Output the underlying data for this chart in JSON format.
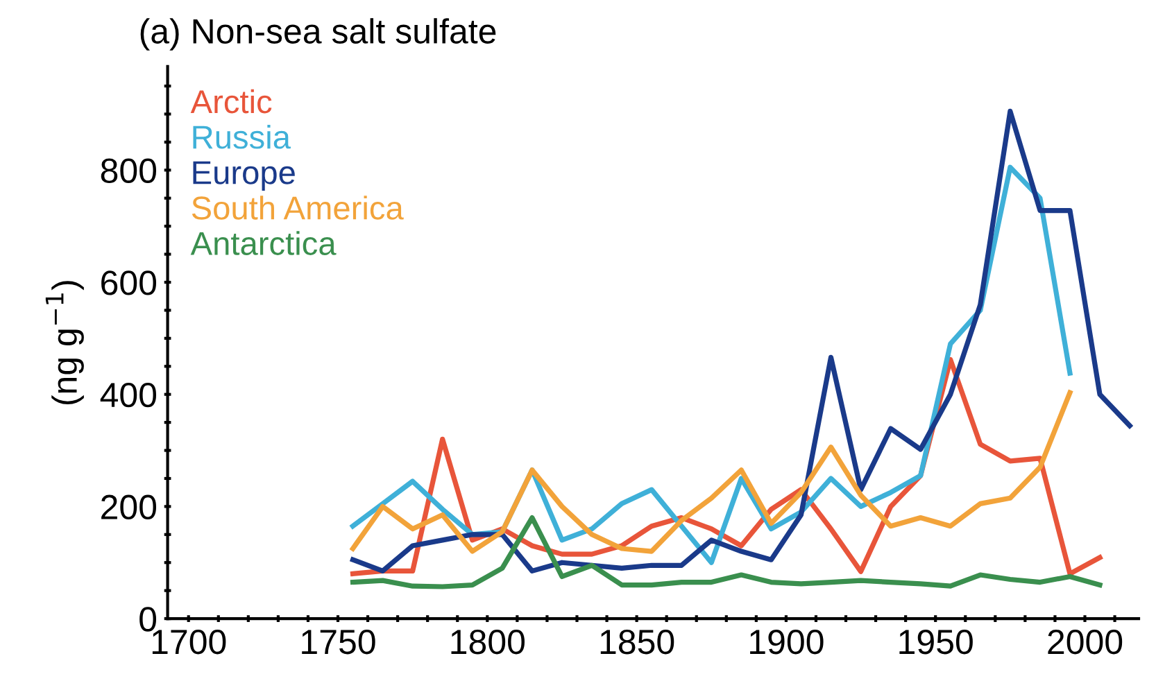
{
  "chart_data": {
    "type": "line",
    "title": "(a) Non-sea salt sulfate",
    "ylabel": "(ng g$^{−1}$)",
    "x": [
      1755,
      1765,
      1775,
      1785,
      1795,
      1805,
      1815,
      1825,
      1835,
      1845,
      1855,
      1865,
      1875,
      1885,
      1895,
      1905,
      1915,
      1925,
      1935,
      1945,
      1955,
      1965,
      1975,
      1985,
      1995,
      2005,
      2015
    ],
    "series": [
      {
        "name": "Arctic",
        "color": "#e8553a",
        "values": [
          80,
          85,
          85,
          320,
          140,
          160,
          130,
          115,
          115,
          130,
          165,
          180,
          160,
          130,
          195,
          230,
          160,
          84,
          200,
          255,
          462,
          311,
          281,
          286,
          80,
          109,
          null
        ]
      },
      {
        "name": "Russia",
        "color": "#3fb0d8",
        "values": [
          165,
          205,
          245,
          195,
          150,
          155,
          265,
          140,
          160,
          205,
          230,
          165,
          100,
          250,
          160,
          190,
          250,
          200,
          225,
          255,
          490,
          550,
          805,
          750,
          438,
          null,
          null
        ]
      },
      {
        "name": "Europe",
        "color": "#1a3a8a",
        "values": [
          105,
          85,
          130,
          140,
          150,
          150,
          85,
          100,
          95,
          90,
          95,
          95,
          140,
          120,
          105,
          185,
          466,
          230,
          339,
          302,
          400,
          560,
          905,
          728,
          728,
          400,
          344
        ]
      },
      {
        "name": "South America",
        "color": "#f2a33a",
        "values": [
          125,
          200,
          160,
          185,
          120,
          155,
          265,
          200,
          150,
          125,
          120,
          175,
          215,
          265,
          170,
          225,
          306,
          220,
          165,
          180,
          165,
          205,
          215,
          270,
          403,
          null,
          null
        ]
      },
      {
        "name": "Antarctica",
        "color": "#3a8f4e",
        "values": [
          65,
          68,
          58,
          57,
          60,
          90,
          180,
          75,
          95,
          60,
          60,
          65,
          65,
          78,
          65,
          62,
          65,
          68,
          65,
          62,
          58,
          78,
          70,
          65,
          75,
          60,
          null
        ]
      }
    ],
    "xlim": [
      1693,
      2018
    ],
    "ylim": [
      0,
      985
    ],
    "xticks": [
      1700,
      {
        "value": 1710,
        "label": null
      },
      {
        "value": 1720,
        "label": null
      },
      {
        "value": 1730,
        "label": null
      },
      {
        "value": 1740,
        "label": null
      },
      1750,
      {
        "value": 1760,
        "label": null
      },
      {
        "value": 1770,
        "label": null
      },
      {
        "value": 1780,
        "label": null
      },
      {
        "value": 1790,
        "label": null
      },
      1800,
      {
        "value": 1810,
        "label": null
      },
      {
        "value": 1820,
        "label": null
      },
      {
        "value": 1830,
        "label": null
      },
      {
        "value": 1840,
        "label": null
      },
      1850,
      {
        "value": 1860,
        "label": null
      },
      {
        "value": 1870,
        "label": null
      },
      {
        "value": 1880,
        "label": null
      },
      {
        "value": 1890,
        "label": null
      },
      1900,
      {
        "value": 1910,
        "label": null
      },
      {
        "value": 1920,
        "label": null
      },
      {
        "value": 1930,
        "label": null
      },
      {
        "value": 1940,
        "label": null
      },
      1950,
      {
        "value": 1960,
        "label": null
      },
      {
        "value": 1970,
        "label": null
      },
      {
        "value": 1980,
        "label": null
      },
      {
        "value": 1990,
        "label": null
      },
      2000,
      {
        "value": 2010,
        "label": null
      }
    ],
    "yticks": [
      0,
      {
        "value": 50,
        "label": null
      },
      {
        "value": 100,
        "label": null
      },
      {
        "value": 150,
        "label": null
      },
      200,
      {
        "value": 250,
        "label": null
      },
      {
        "value": 300,
        "label": null
      },
      {
        "value": 350,
        "label": null
      },
      400,
      {
        "value": 450,
        "label": null
      },
      {
        "value": 500,
        "label": null
      },
      {
        "value": 550,
        "label": null
      },
      600,
      {
        "value": 650,
        "label": null
      },
      {
        "value": 700,
        "label": null
      },
      {
        "value": 750,
        "label": null
      },
      800,
      {
        "value": 850,
        "label": null
      },
      {
        "value": 900,
        "label": null
      },
      {
        "value": 950,
        "label": null
      }
    ],
    "legend": "top left",
    "grid": false,
    "line_style": "solid"
  }
}
